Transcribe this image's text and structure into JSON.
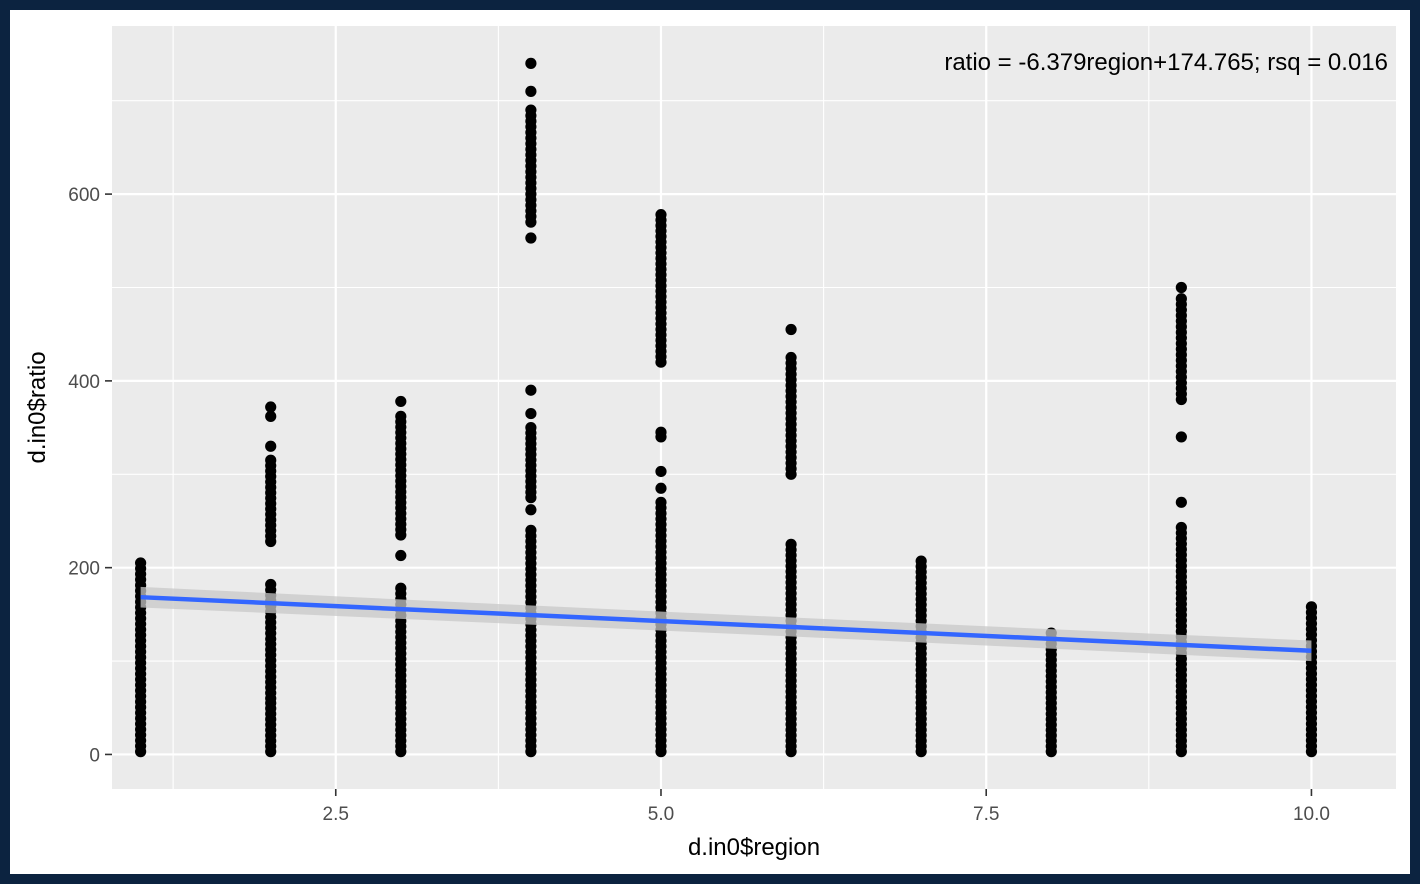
{
  "chart_data": {
    "type": "scatter",
    "title": "",
    "xlabel": "d.in0$region",
    "ylabel": "d.in0$ratio",
    "xlim": [
      0.78,
      10.65
    ],
    "ylim": [
      -37,
      780
    ],
    "x_major_ticks": [
      2.5,
      5.0,
      7.5,
      10.0
    ],
    "x_tick_labels": [
      "2.5",
      "5.0",
      "7.5",
      "10.0"
    ],
    "y_major_ticks": [
      0,
      200,
      400,
      600
    ],
    "y_tick_labels": [
      "0",
      "200",
      "400",
      "600"
    ],
    "grid": true,
    "annotation": "ratio = -6.379region+174.765; rsq = 0.016",
    "fit": {
      "slope": -6.379,
      "intercept": 174.765,
      "x_range": [
        1,
        10
      ]
    },
    "colors": {
      "panel": "#ebebeb",
      "grid": "#ffffff",
      "points": "#000000",
      "fit_line": "#3366ff",
      "ribbon": "#c8c8c8"
    },
    "groups": [
      {
        "x": 1,
        "clusters": [
          [
            3,
            205
          ]
        ],
        "extra": []
      },
      {
        "x": 2,
        "clusters": [
          [
            3,
            55
          ],
          [
            60,
            182
          ],
          [
            228,
            315
          ]
        ],
        "extra": [
          330,
          362,
          372
        ]
      },
      {
        "x": 3,
        "clusters": [
          [
            3,
            178
          ],
          [
            235,
            362
          ]
        ],
        "extra": [
          213,
          378
        ]
      },
      {
        "x": 4,
        "clusters": [
          [
            3,
            240
          ],
          [
            275,
            350
          ],
          [
            570,
            690
          ]
        ],
        "extra": [
          262,
          365,
          390,
          553,
          710,
          740
        ]
      },
      {
        "x": 5,
        "clusters": [
          [
            3,
            270
          ],
          [
            420,
            578
          ]
        ],
        "extra": [
          285,
          303,
          340,
          345
        ]
      },
      {
        "x": 6,
        "clusters": [
          [
            3,
            225
          ],
          [
            300,
            425
          ]
        ],
        "extra": [
          455
        ]
      },
      {
        "x": 7,
        "clusters": [
          [
            3,
            207
          ]
        ],
        "extra": []
      },
      {
        "x": 8,
        "clusters": [
          [
            3,
            130
          ]
        ],
        "extra": []
      },
      {
        "x": 9,
        "clusters": [
          [
            3,
            243
          ],
          [
            380,
            488
          ]
        ],
        "extra": [
          270,
          340,
          500
        ]
      },
      {
        "x": 10,
        "clusters": [
          [
            3,
            158
          ]
        ],
        "extra": []
      }
    ]
  }
}
